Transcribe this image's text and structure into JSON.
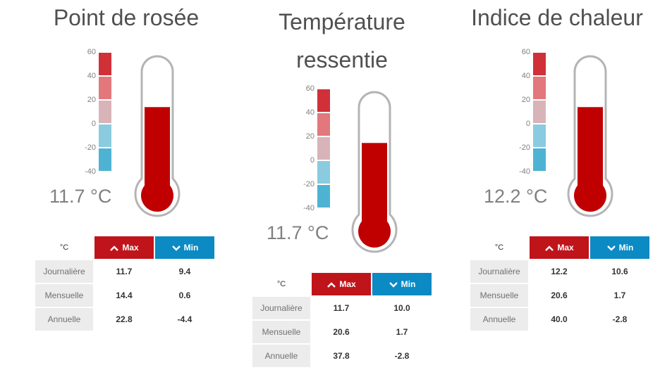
{
  "colors": {
    "mercury": "#c00000",
    "tube_outline": "#b0b0b0",
    "bands": [
      "#d03038",
      "#e2787c",
      "#d8b4b8",
      "#8acbe0",
      "#4eb3d3"
    ],
    "max_button": "#c0141b",
    "min_button": "#0b8ac4"
  },
  "icons": {
    "max": "chevron-up-icon",
    "min": "chevron-down-icon"
  },
  "panels": [
    {
      "title": "Point de rosée",
      "scale_ticks": [
        "60",
        "40",
        "20",
        "0",
        "-20",
        "-40"
      ],
      "current_value": "11.7 °C",
      "fill_fraction": 0.78,
      "table": {
        "unit": "°C",
        "max_label": "Max",
        "min_label": "Min",
        "rows": [
          {
            "label": "Journalière",
            "max": "11.7",
            "min": "9.4"
          },
          {
            "label": "Mensuelle",
            "max": "14.4",
            "min": "0.6"
          },
          {
            "label": "Annuelle",
            "max": "22.8",
            "min": "-4.4"
          }
        ]
      }
    },
    {
      "title": "Température ressentie",
      "scale_ticks": [
        "60",
        "40",
        "20",
        "0",
        "-20",
        "-40"
      ],
      "current_value": "11.7 °C",
      "fill_fraction": 0.78,
      "table": {
        "unit": "°C",
        "max_label": "Max",
        "min_label": "Min",
        "rows": [
          {
            "label": "Journalière",
            "max": "11.7",
            "min": "10.0"
          },
          {
            "label": "Mensuelle",
            "max": "20.6",
            "min": "1.7"
          },
          {
            "label": "Annuelle",
            "max": "37.8",
            "min": "-2.8"
          }
        ]
      }
    },
    {
      "title": "Indice de chaleur",
      "scale_ticks": [
        "60",
        "40",
        "20",
        "0",
        "-20",
        "-40"
      ],
      "current_value": "12.2 °C",
      "fill_fraction": 0.78,
      "table": {
        "unit": "°C",
        "max_label": "Max",
        "min_label": "Min",
        "rows": [
          {
            "label": "Journalière",
            "max": "12.2",
            "min": "10.6"
          },
          {
            "label": "Mensuelle",
            "max": "20.6",
            "min": "1.7"
          },
          {
            "label": "Annuelle",
            "max": "40.0",
            "min": "-2.8"
          }
        ]
      }
    }
  ]
}
